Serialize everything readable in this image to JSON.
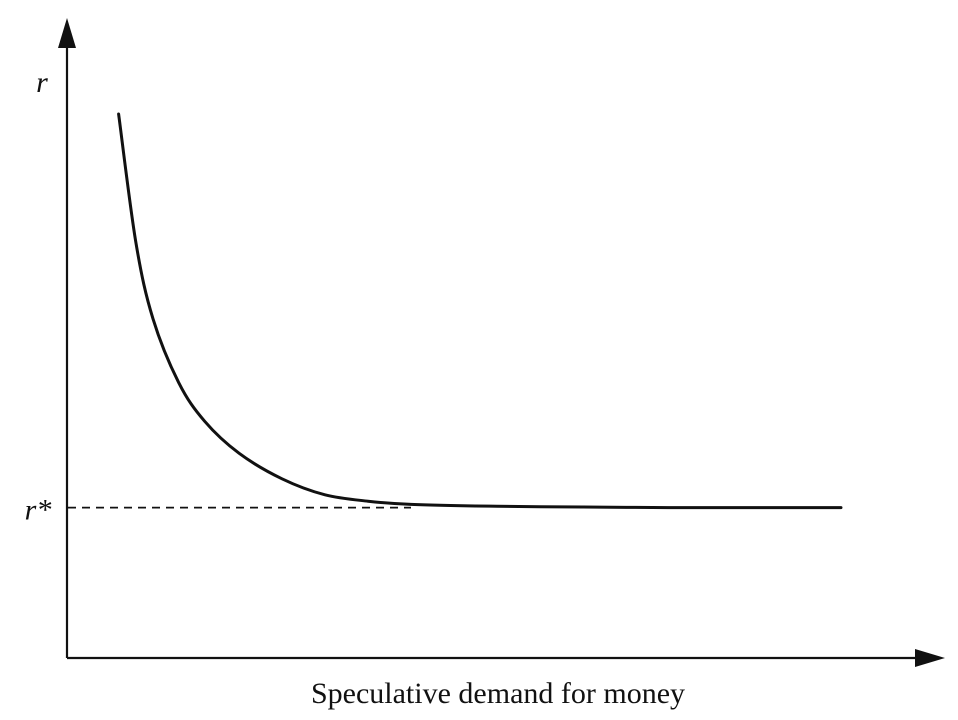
{
  "chart_data": {
    "type": "line",
    "title": "",
    "xlabel": "Speculative demand for money",
    "ylabel": "r",
    "xlim": [
      0,
      10
    ],
    "ylim": [
      0,
      10
    ],
    "grid": false,
    "series": [
      {
        "x": [
          0.6,
          0.8,
          1.0,
          1.3,
          1.6,
          2.0,
          2.5,
          3.0,
          3.5,
          4.0,
          5.0,
          6.0,
          7.0,
          8.0,
          9.0
        ],
        "y": [
          8.5,
          6.5,
          5.3,
          4.3,
          3.7,
          3.2,
          2.8,
          2.55,
          2.45,
          2.4,
          2.37,
          2.36,
          2.35,
          2.35,
          2.35
        ]
      }
    ],
    "annotations": [
      {
        "type": "hline",
        "y": 2.35,
        "label": "r*",
        "style": "dashed"
      }
    ]
  }
}
